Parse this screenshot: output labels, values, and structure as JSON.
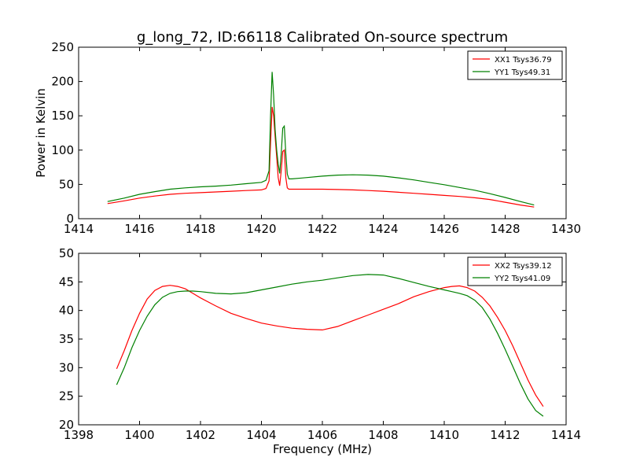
{
  "title": "g_long_72, ID:66118 Calibrated On-source spectrum",
  "colors": {
    "xx": "#ff0000",
    "yy": "#008000",
    "axis": "#000000",
    "background": "#ffffff"
  },
  "chart_data": [
    {
      "type": "line",
      "title": "g_long_72, ID:66118 Calibrated On-source spectrum",
      "xlabel": "",
      "ylabel": "Power in Kelvin",
      "xlim": [
        1414,
        1430
      ],
      "ylim": [
        0,
        250
      ],
      "xticks": [
        1414,
        1416,
        1418,
        1420,
        1422,
        1424,
        1426,
        1428,
        1430
      ],
      "yticks": [
        0,
        50,
        100,
        150,
        200,
        250
      ],
      "legend": "top-right",
      "grid": false,
      "series": [
        {
          "name": "XX1 Tsys36.79",
          "color": "#ff0000",
          "x": [
            1414.95,
            1415.5,
            1416,
            1416.5,
            1417,
            1417.5,
            1418,
            1418.5,
            1419,
            1419.5,
            1420,
            1420.15,
            1420.25,
            1420.3,
            1420.35,
            1420.4,
            1420.45,
            1420.5,
            1420.55,
            1420.6,
            1420.65,
            1420.7,
            1420.75,
            1420.8,
            1420.85,
            1420.9,
            1421,
            1421.5,
            1422,
            1422.5,
            1423,
            1423.5,
            1424,
            1424.5,
            1425,
            1425.5,
            1426,
            1426.5,
            1427,
            1427.5,
            1428,
            1428.5,
            1428.95
          ],
          "y": [
            22,
            26,
            30,
            33,
            35.5,
            37,
            38,
            39,
            40,
            41,
            42,
            44,
            55,
            110,
            163,
            150,
            120,
            90,
            60,
            48,
            70,
            98,
            100,
            60,
            45,
            43,
            43,
            43,
            43,
            42.5,
            42,
            41,
            40,
            38.5,
            37,
            35.5,
            34,
            32.5,
            30.5,
            28,
            24,
            20,
            17
          ]
        },
        {
          "name": "YY1 Tsys49.31",
          "color": "#008000",
          "x": [
            1414.95,
            1415.5,
            1416,
            1416.5,
            1417,
            1417.5,
            1418,
            1418.5,
            1419,
            1419.5,
            1420,
            1420.15,
            1420.25,
            1420.3,
            1420.35,
            1420.4,
            1420.45,
            1420.5,
            1420.55,
            1420.6,
            1420.65,
            1420.7,
            1420.75,
            1420.8,
            1420.85,
            1420.9,
            1421,
            1421.5,
            1422,
            1422.5,
            1423,
            1423.5,
            1424,
            1424.5,
            1425,
            1425.5,
            1426,
            1426.5,
            1427,
            1427.5,
            1428,
            1428.5,
            1428.95
          ],
          "y": [
            25,
            30,
            35.5,
            39.5,
            43,
            45,
            46.5,
            47.5,
            49,
            51,
            53,
            56,
            70,
            150,
            214,
            180,
            130,
            100,
            80,
            66,
            95,
            132,
            135,
            95,
            65,
            58,
            58,
            60,
            62,
            63.5,
            64,
            63.5,
            62,
            59.5,
            56.5,
            53,
            49.5,
            45.5,
            41.5,
            36.5,
            31,
            25,
            20
          ]
        }
      ]
    },
    {
      "type": "line",
      "title": "",
      "xlabel": "Frequency (MHz)",
      "ylabel": "",
      "xlim": [
        1398,
        1414
      ],
      "ylim": [
        20,
        50
      ],
      "xticks": [
        1398,
        1400,
        1402,
        1404,
        1406,
        1408,
        1410,
        1412,
        1414
      ],
      "yticks": [
        20,
        25,
        30,
        35,
        40,
        45,
        50
      ],
      "legend": "top-right",
      "grid": false,
      "series": [
        {
          "name": "XX2 Tsys39.12",
          "color": "#ff0000",
          "x": [
            1399.25,
            1399.5,
            1399.75,
            1400,
            1400.25,
            1400.5,
            1400.75,
            1401,
            1401.25,
            1401.5,
            1401.75,
            1402,
            1402.5,
            1403,
            1403.5,
            1404,
            1404.5,
            1405,
            1405.5,
            1406,
            1406.5,
            1407,
            1407.5,
            1408,
            1408.5,
            1409,
            1409.5,
            1410,
            1410.25,
            1410.5,
            1410.75,
            1411,
            1411.25,
            1411.5,
            1411.75,
            1412,
            1412.25,
            1412.5,
            1412.75,
            1413,
            1413.25
          ],
          "y": [
            29.8,
            33,
            36.5,
            39.5,
            42,
            43.5,
            44.2,
            44.4,
            44.2,
            43.8,
            43,
            42.2,
            40.8,
            39.5,
            38.6,
            37.8,
            37.3,
            36.9,
            36.7,
            36.6,
            37.2,
            38.2,
            39.2,
            40.2,
            41.2,
            42.4,
            43.3,
            44,
            44.2,
            44.3,
            44,
            43.4,
            42.3,
            40.8,
            38.8,
            36.5,
            33.8,
            30.8,
            27.8,
            25.2,
            23.2
          ]
        },
        {
          "name": "YY2 Tsys41.09",
          "color": "#008000",
          "x": [
            1399.25,
            1399.5,
            1399.75,
            1400,
            1400.25,
            1400.5,
            1400.75,
            1401,
            1401.25,
            1401.5,
            1401.75,
            1402,
            1402.5,
            1403,
            1403.5,
            1404,
            1404.5,
            1405,
            1405.5,
            1406,
            1406.5,
            1407,
            1407.5,
            1408,
            1408.5,
            1409,
            1409.5,
            1410,
            1410.25,
            1410.5,
            1410.75,
            1411,
            1411.25,
            1411.5,
            1411.75,
            1412,
            1412.25,
            1412.5,
            1412.75,
            1413,
            1413.25
          ],
          "y": [
            27,
            30,
            33.5,
            36.5,
            39,
            41,
            42.3,
            43,
            43.3,
            43.4,
            43.4,
            43.3,
            43,
            42.9,
            43.1,
            43.6,
            44.1,
            44.6,
            45,
            45.3,
            45.7,
            46.1,
            46.3,
            46.2,
            45.6,
            44.9,
            44.2,
            43.6,
            43.3,
            43,
            42.6,
            41.8,
            40.5,
            38.5,
            36,
            33.2,
            30.2,
            27.2,
            24.5,
            22.5,
            21.5
          ]
        }
      ]
    }
  ]
}
